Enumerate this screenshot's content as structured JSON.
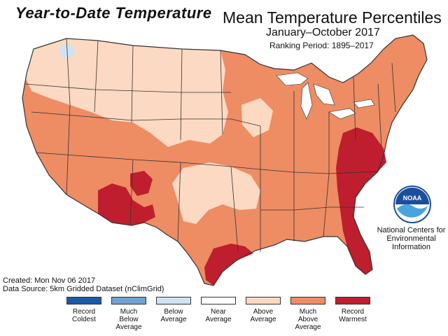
{
  "header": {
    "ytd_title": "Year-to-Date Temperature",
    "main_title": "Mean Temperature Percentiles",
    "subtitle": "January–October 2017",
    "ranking_period": "Ranking Period: 1895–2017"
  },
  "footer": {
    "created": "Created: Mon Nov 06 2017",
    "data_source": "Data Source: 5km Gridded Dataset (nClimGrid)"
  },
  "logo": {
    "agency_text": "NOAA",
    "org_line1": "National Centers for",
    "org_line2": "Environmental",
    "org_line3": "Information"
  },
  "legend": [
    {
      "line1": "Record",
      "line2": "Coldest",
      "line3": "",
      "color": "#1a5aa8"
    },
    {
      "line1": "Much",
      "line2": "Below",
      "line3": "Average",
      "color": "#6ea4cf"
    },
    {
      "line1": "Below",
      "line2": "Average",
      "line3": "",
      "color": "#cfe3f2"
    },
    {
      "line1": "Near",
      "line2": "Average",
      "line3": "",
      "color": "#ffffff"
    },
    {
      "line1": "Above",
      "line2": "Average",
      "line3": "",
      "color": "#fcd9c2"
    },
    {
      "line1": "Much",
      "line2": "Above",
      "line3": "Average",
      "color": "#ee8c64"
    },
    {
      "line1": "Record",
      "line2": "Warmest",
      "line3": "",
      "color": "#bf1e2e"
    }
  ],
  "map_colors": {
    "above_average": "#fcd9c2",
    "much_above": "#ee8c64",
    "record_warmest": "#bf1e2e",
    "below_average": "#cfe3f2",
    "border": "#333333"
  }
}
